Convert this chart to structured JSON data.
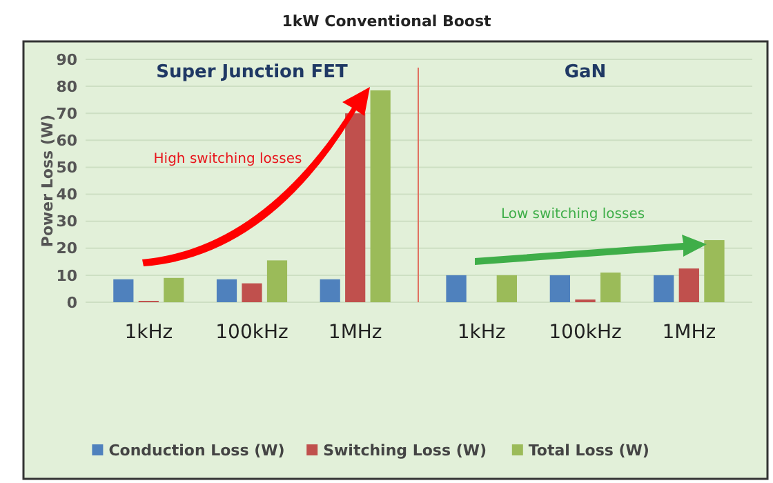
{
  "chart_data": [
    {
      "type": "bar",
      "title": "1kW Conventional Boost",
      "subtitle": "Super Junction FET",
      "ylabel": "Power Loss (W)",
      "categories": [
        "1kHz",
        "100kHz",
        "1MHz"
      ],
      "series": [
        {
          "name": "Conduction Loss (W)",
          "color": "#4f81bd",
          "values": [
            8.5,
            8.5,
            8.5
          ]
        },
        {
          "name": "Switching Loss (W)",
          "color": "#c0504d",
          "values": [
            0.5,
            7,
            70
          ]
        },
        {
          "name": "Total Loss (W)",
          "color": "#9bbb59",
          "values": [
            9,
            15.5,
            78.5
          ]
        }
      ],
      "ylim": [
        0,
        90
      ],
      "yticks": [
        0,
        10,
        20,
        30,
        40,
        50,
        60,
        70,
        80,
        90
      ],
      "grid": "y",
      "legend": "bottom",
      "annotations": [
        "High switching losses"
      ]
    },
    {
      "type": "bar",
      "title": "GaN",
      "categories": [
        "1kHz",
        "100kHz",
        "1MHz"
      ],
      "series": [
        {
          "color": "#4f81bd",
          "values": [
            10,
            10,
            10
          ]
        },
        {
          "color": "#c0504d",
          "values": [
            0,
            1,
            12.5
          ]
        },
        {
          "color": "#9bbb59",
          "values": [
            10,
            11,
            23
          ]
        }
      ],
      "ylim": [
        0,
        90
      ],
      "yticks": [
        0,
        10,
        20,
        30,
        40,
        50,
        60,
        70,
        80,
        90
      ],
      "grid": "y",
      "tick_labels": "x",
      "annotations": [
        "Low switching losses"
      ]
    }
  ]
}
